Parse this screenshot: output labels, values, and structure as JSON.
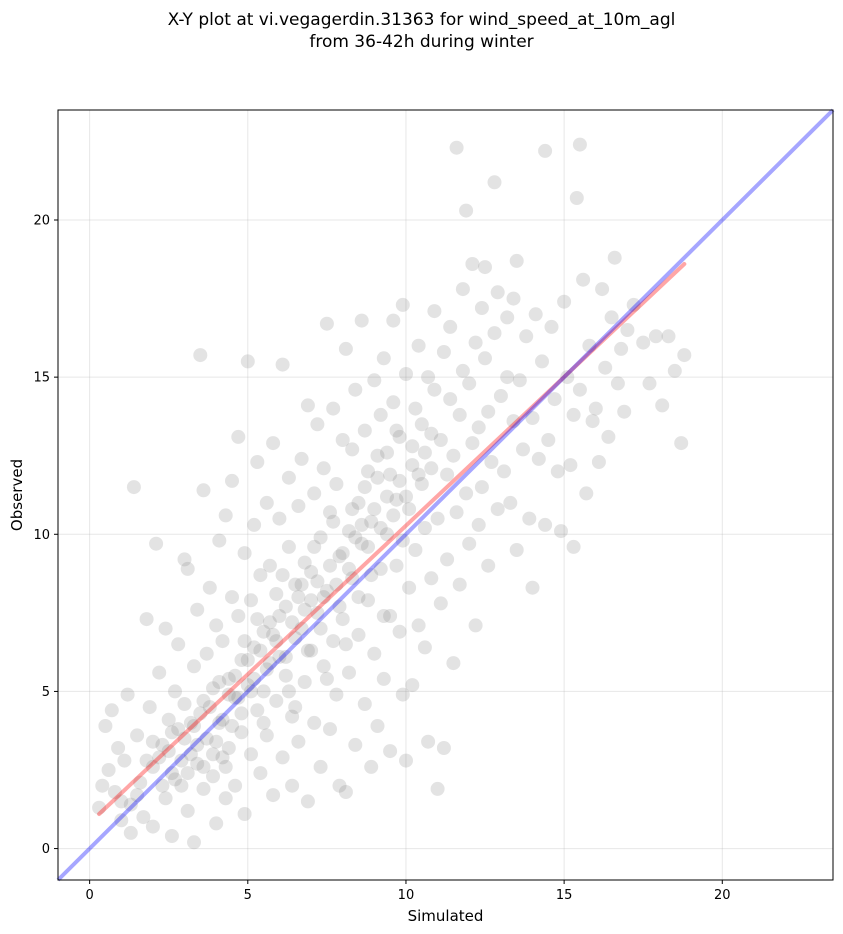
{
  "chart_data": {
    "type": "scatter",
    "title_lines": [
      "X-Y plot at vi.vegagerdin.31363 for wind_speed_at_10m_agl",
      "from 36-42h during winter"
    ],
    "xlabel": "Simulated",
    "ylabel": "Observed",
    "xlim": [
      -1.0,
      23.5
    ],
    "ylim": [
      -1.0,
      23.5
    ],
    "xticks": [
      0,
      5,
      10,
      15,
      20
    ],
    "yticks": [
      0,
      5,
      10,
      15,
      20
    ],
    "grid": true,
    "point_color": "#808080",
    "identity_line": {
      "color": "#0000ff",
      "from": [
        -1.0,
        -1.0
      ],
      "to": [
        23.5,
        23.5
      ]
    },
    "fit_line": {
      "color": "#ff0000",
      "from": [
        0.3,
        1.1
      ],
      "to": [
        18.8,
        18.6
      ]
    },
    "points": [
      [
        0.3,
        1.3
      ],
      [
        0.4,
        2.0
      ],
      [
        0.5,
        3.9
      ],
      [
        0.6,
        2.5
      ],
      [
        0.7,
        4.4
      ],
      [
        0.8,
        1.8
      ],
      [
        0.9,
        3.2
      ],
      [
        1.0,
        1.5
      ],
      [
        1.1,
        2.8
      ],
      [
        1.2,
        4.9
      ],
      [
        1.3,
        1.4
      ],
      [
        1.3,
        0.5
      ],
      [
        1.4,
        11.5
      ],
      [
        1.5,
        3.6
      ],
      [
        1.6,
        2.1
      ],
      [
        1.7,
        1.0
      ],
      [
        1.8,
        7.3
      ],
      [
        1.9,
        4.5
      ],
      [
        2.0,
        2.6
      ],
      [
        2.0,
        0.7
      ],
      [
        2.1,
        9.7
      ],
      [
        2.2,
        5.6
      ],
      [
        2.3,
        3.3
      ],
      [
        2.4,
        1.6
      ],
      [
        2.4,
        7.0
      ],
      [
        2.5,
        4.1
      ],
      [
        2.6,
        2.4
      ],
      [
        2.6,
        0.4
      ],
      [
        2.7,
        5.0
      ],
      [
        2.8,
        3.8
      ],
      [
        2.8,
        6.5
      ],
      [
        2.9,
        2.0
      ],
      [
        3.0,
        9.2
      ],
      [
        3.0,
        4.6
      ],
      [
        3.1,
        1.2
      ],
      [
        3.1,
        8.9
      ],
      [
        3.2,
        3.0
      ],
      [
        3.3,
        5.8
      ],
      [
        3.3,
        0.2
      ],
      [
        3.4,
        2.7
      ],
      [
        3.4,
        7.6
      ],
      [
        3.5,
        4.3
      ],
      [
        3.5,
        15.7
      ],
      [
        3.6,
        11.4
      ],
      [
        3.6,
        1.9
      ],
      [
        3.7,
        6.2
      ],
      [
        3.7,
        3.5
      ],
      [
        3.8,
        8.3
      ],
      [
        3.9,
        2.3
      ],
      [
        3.9,
        5.1
      ],
      [
        4.0,
        0.8
      ],
      [
        4.0,
        7.1
      ],
      [
        4.1,
        4.0
      ],
      [
        4.1,
        9.8
      ],
      [
        4.2,
        2.9
      ],
      [
        4.2,
        6.6
      ],
      [
        4.3,
        1.6
      ],
      [
        4.3,
        10.6
      ],
      [
        4.4,
        5.4
      ],
      [
        4.4,
        3.2
      ],
      [
        4.5,
        8.0
      ],
      [
        4.5,
        11.7
      ],
      [
        4.6,
        4.8
      ],
      [
        4.6,
        2.0
      ],
      [
        4.7,
        7.4
      ],
      [
        4.7,
        13.1
      ],
      [
        4.8,
        6.0
      ],
      [
        4.8,
        3.7
      ],
      [
        4.9,
        9.4
      ],
      [
        4.9,
        1.1
      ],
      [
        5.0,
        5.2
      ],
      [
        5.0,
        15.5
      ],
      [
        5.1,
        7.9
      ],
      [
        5.1,
        3.0
      ],
      [
        5.2,
        10.3
      ],
      [
        5.2,
        6.4
      ],
      [
        5.3,
        4.4
      ],
      [
        5.3,
        12.3
      ],
      [
        5.4,
        2.4
      ],
      [
        5.4,
        8.7
      ],
      [
        5.5,
        6.9
      ],
      [
        5.5,
        5.0
      ],
      [
        5.6,
        11.0
      ],
      [
        5.6,
        3.6
      ],
      [
        5.7,
        9.0
      ],
      [
        5.7,
        7.2
      ],
      [
        5.8,
        1.7
      ],
      [
        5.8,
        12.9
      ],
      [
        5.9,
        4.7
      ],
      [
        5.9,
        8.1
      ],
      [
        6.0,
        6.1
      ],
      [
        6.0,
        10.5
      ],
      [
        6.1,
        2.9
      ],
      [
        6.1,
        15.4
      ],
      [
        6.2,
        7.7
      ],
      [
        6.2,
        5.5
      ],
      [
        6.3,
        9.6
      ],
      [
        6.3,
        11.8
      ],
      [
        6.4,
        4.2
      ],
      [
        6.4,
        2.0
      ],
      [
        6.5,
        8.4
      ],
      [
        6.5,
        6.7
      ],
      [
        6.6,
        10.9
      ],
      [
        6.6,
        3.4
      ],
      [
        6.7,
        12.4
      ],
      [
        6.7,
        7.0
      ],
      [
        6.8,
        5.3
      ],
      [
        6.8,
        9.1
      ],
      [
        6.9,
        1.5
      ],
      [
        6.9,
        14.1
      ],
      [
        7.0,
        6.3
      ],
      [
        7.0,
        8.8
      ],
      [
        7.1,
        4.0
      ],
      [
        7.1,
        11.3
      ],
      [
        7.2,
        13.5
      ],
      [
        7.2,
        7.5
      ],
      [
        7.3,
        2.6
      ],
      [
        7.3,
        9.9
      ],
      [
        7.4,
        5.8
      ],
      [
        7.4,
        12.1
      ],
      [
        7.5,
        16.7
      ],
      [
        7.5,
        8.2
      ],
      [
        7.6,
        3.8
      ],
      [
        7.6,
        10.7
      ],
      [
        7.7,
        6.6
      ],
      [
        7.7,
        14.0
      ],
      [
        7.8,
        4.9
      ],
      [
        7.8,
        11.6
      ],
      [
        7.9,
        2.0
      ],
      [
        7.9,
        9.3
      ],
      [
        8.0,
        13.0
      ],
      [
        8.0,
        7.3
      ],
      [
        8.1,
        1.8
      ],
      [
        8.1,
        15.9
      ],
      [
        8.2,
        10.1
      ],
      [
        8.2,
        5.6
      ],
      [
        8.3,
        12.7
      ],
      [
        8.3,
        8.6
      ],
      [
        8.4,
        3.3
      ],
      [
        8.4,
        14.6
      ],
      [
        8.5,
        6.8
      ],
      [
        8.5,
        11.0
      ],
      [
        8.6,
        9.7
      ],
      [
        8.6,
        16.8
      ],
      [
        8.7,
        4.6
      ],
      [
        8.7,
        13.3
      ],
      [
        8.8,
        7.9
      ],
      [
        8.8,
        12.0
      ],
      [
        8.9,
        2.6
      ],
      [
        8.9,
        10.4
      ],
      [
        9.0,
        14.9
      ],
      [
        9.0,
        6.2
      ],
      [
        9.1,
        3.9
      ],
      [
        9.1,
        11.8
      ],
      [
        9.2,
        8.9
      ],
      [
        9.2,
        13.8
      ],
      [
        9.3,
        15.6
      ],
      [
        9.3,
        5.4
      ],
      [
        9.4,
        10.0
      ],
      [
        9.4,
        12.6
      ],
      [
        9.5,
        7.4
      ],
      [
        9.5,
        3.1
      ],
      [
        9.6,
        16.8
      ],
      [
        9.6,
        14.2
      ],
      [
        9.7,
        9.0
      ],
      [
        9.7,
        11.1
      ],
      [
        9.8,
        6.9
      ],
      [
        9.8,
        13.1
      ],
      [
        9.9,
        17.3
      ],
      [
        9.9,
        4.9
      ],
      [
        10.0,
        2.8
      ],
      [
        10.0,
        15.1
      ],
      [
        10.1,
        10.8
      ],
      [
        10.1,
        8.3
      ],
      [
        10.2,
        12.8
      ],
      [
        10.2,
        5.2
      ],
      [
        10.3,
        14.0
      ],
      [
        10.3,
        9.5
      ],
      [
        10.4,
        16.0
      ],
      [
        10.4,
        7.1
      ],
      [
        10.5,
        11.6
      ],
      [
        10.5,
        13.5
      ],
      [
        10.6,
        6.4
      ],
      [
        10.6,
        10.2
      ],
      [
        10.7,
        15.0
      ],
      [
        10.7,
        3.4
      ],
      [
        10.8,
        12.1
      ],
      [
        10.8,
        8.6
      ],
      [
        10.9,
        14.6
      ],
      [
        10.9,
        17.1
      ],
      [
        11.0,
        1.9
      ],
      [
        11.0,
        10.5
      ],
      [
        11.1,
        13.0
      ],
      [
        11.1,
        7.8
      ],
      [
        11.2,
        15.8
      ],
      [
        11.2,
        3.2
      ],
      [
        11.3,
        11.9
      ],
      [
        11.3,
        9.2
      ],
      [
        11.4,
        14.3
      ],
      [
        11.4,
        16.6
      ],
      [
        11.5,
        12.5
      ],
      [
        11.5,
        5.9
      ],
      [
        11.6,
        10.7
      ],
      [
        11.6,
        22.3
      ],
      [
        11.7,
        13.8
      ],
      [
        11.7,
        8.4
      ],
      [
        11.8,
        15.2
      ],
      [
        11.8,
        17.8
      ],
      [
        11.9,
        11.3
      ],
      [
        11.9,
        20.3
      ],
      [
        12.0,
        9.7
      ],
      [
        12.0,
        14.8
      ],
      [
        12.1,
        12.9
      ],
      [
        12.1,
        18.6
      ],
      [
        12.2,
        7.1
      ],
      [
        12.2,
        16.1
      ],
      [
        12.3,
        10.3
      ],
      [
        12.3,
        13.4
      ],
      [
        12.4,
        17.2
      ],
      [
        12.4,
        11.5
      ],
      [
        12.5,
        15.6
      ],
      [
        12.5,
        18.5
      ],
      [
        12.6,
        9.0
      ],
      [
        12.6,
        13.9
      ],
      [
        12.7,
        12.3
      ],
      [
        12.8,
        16.4
      ],
      [
        12.8,
        21.2
      ],
      [
        12.9,
        10.8
      ],
      [
        12.9,
        17.7
      ],
      [
        13.0,
        14.4
      ],
      [
        13.1,
        12.0
      ],
      [
        13.2,
        15.0
      ],
      [
        13.2,
        16.9
      ],
      [
        13.3,
        11.0
      ],
      [
        13.4,
        13.6
      ],
      [
        13.4,
        17.5
      ],
      [
        13.5,
        9.5
      ],
      [
        13.5,
        18.7
      ],
      [
        13.6,
        14.9
      ],
      [
        13.7,
        12.7
      ],
      [
        13.8,
        16.3
      ],
      [
        13.9,
        10.5
      ],
      [
        14.0,
        8.3
      ],
      [
        14.0,
        13.7
      ],
      [
        14.1,
        17.0
      ],
      [
        14.2,
        12.4
      ],
      [
        14.3,
        15.5
      ],
      [
        14.4,
        22.2
      ],
      [
        14.4,
        10.3
      ],
      [
        14.5,
        13.0
      ],
      [
        14.6,
        16.6
      ],
      [
        14.7,
        14.3
      ],
      [
        14.8,
        12.0
      ],
      [
        14.9,
        10.1
      ],
      [
        15.0,
        17.4
      ],
      [
        15.1,
        15.0
      ],
      [
        15.2,
        12.2
      ],
      [
        15.3,
        13.8
      ],
      [
        15.3,
        9.6
      ],
      [
        15.4,
        20.7
      ],
      [
        15.5,
        14.6
      ],
      [
        15.5,
        22.4
      ],
      [
        15.6,
        18.1
      ],
      [
        15.7,
        11.3
      ],
      [
        15.8,
        16.0
      ],
      [
        15.9,
        13.6
      ],
      [
        16.0,
        14.0
      ],
      [
        16.1,
        12.3
      ],
      [
        16.2,
        17.8
      ],
      [
        16.3,
        15.3
      ],
      [
        16.4,
        13.1
      ],
      [
        16.5,
        16.9
      ],
      [
        16.6,
        18.8
      ],
      [
        16.7,
        14.8
      ],
      [
        16.8,
        15.9
      ],
      [
        16.9,
        13.9
      ],
      [
        17.0,
        16.5
      ],
      [
        17.2,
        17.3
      ],
      [
        17.5,
        16.1
      ],
      [
        17.7,
        14.8
      ],
      [
        17.9,
        16.3
      ],
      [
        18.1,
        14.1
      ],
      [
        18.3,
        16.3
      ],
      [
        18.5,
        15.2
      ],
      [
        18.7,
        12.9
      ],
      [
        18.8,
        15.7
      ],
      [
        2.0,
        3.4
      ],
      [
        2.2,
        2.9
      ],
      [
        2.5,
        3.1
      ],
      [
        2.7,
        2.2
      ],
      [
        3.0,
        3.5
      ],
      [
        3.2,
        4.0
      ],
      [
        3.4,
        3.3
      ],
      [
        3.6,
        2.6
      ],
      [
        3.8,
        4.5
      ],
      [
        4.0,
        3.4
      ],
      [
        4.2,
        4.1
      ],
      [
        4.4,
        4.9
      ],
      [
        4.6,
        5.5
      ],
      [
        4.8,
        4.3
      ],
      [
        5.0,
        6.0
      ],
      [
        5.2,
        5.4
      ],
      [
        5.4,
        6.3
      ],
      [
        5.6,
        5.7
      ],
      [
        5.8,
        6.8
      ],
      [
        6.0,
        7.4
      ],
      [
        6.2,
        6.1
      ],
      [
        6.4,
        7.2
      ],
      [
        6.6,
        8.0
      ],
      [
        6.8,
        7.6
      ],
      [
        7.0,
        7.9
      ],
      [
        7.2,
        8.5
      ],
      [
        7.4,
        8.0
      ],
      [
        7.6,
        9.0
      ],
      [
        7.8,
        8.4
      ],
      [
        8.0,
        9.4
      ],
      [
        8.2,
        8.9
      ],
      [
        8.4,
        9.9
      ],
      [
        8.6,
        10.3
      ],
      [
        8.8,
        9.6
      ],
      [
        9.0,
        10.8
      ],
      [
        9.2,
        10.2
      ],
      [
        9.4,
        11.2
      ],
      [
        9.6,
        10.6
      ],
      [
        9.8,
        11.7
      ],
      [
        10.0,
        11.2
      ],
      [
        10.2,
        12.2
      ],
      [
        10.4,
        11.9
      ],
      [
        10.6,
        12.6
      ],
      [
        10.8,
        13.2
      ],
      [
        1.0,
        0.9
      ],
      [
        1.5,
        1.7
      ],
      [
        1.8,
        2.8
      ],
      [
        2.3,
        2.0
      ],
      [
        2.6,
        3.7
      ],
      [
        2.9,
        2.8
      ],
      [
        3.1,
        2.4
      ],
      [
        3.3,
        3.9
      ],
      [
        3.6,
        4.7
      ],
      [
        3.9,
        3.0
      ],
      [
        4.1,
        5.3
      ],
      [
        4.3,
        2.6
      ],
      [
        4.5,
        3.9
      ],
      [
        4.7,
        4.8
      ],
      [
        4.9,
        6.6
      ],
      [
        5.1,
        5.0
      ],
      [
        5.3,
        7.3
      ],
      [
        5.5,
        4.0
      ],
      [
        5.7,
        5.9
      ],
      [
        5.9,
        6.6
      ],
      [
        6.1,
        8.7
      ],
      [
        6.3,
        5.0
      ],
      [
        6.5,
        4.5
      ],
      [
        6.7,
        8.4
      ],
      [
        6.9,
        6.3
      ],
      [
        7.1,
        9.6
      ],
      [
        7.3,
        7.0
      ],
      [
        7.5,
        5.4
      ],
      [
        7.7,
        10.4
      ],
      [
        7.9,
        7.7
      ],
      [
        8.1,
        6.5
      ],
      [
        8.3,
        10.8
      ],
      [
        8.5,
        8.0
      ],
      [
        8.7,
        11.5
      ],
      [
        8.9,
        8.7
      ],
      [
        9.1,
        12.5
      ],
      [
        9.3,
        7.4
      ],
      [
        9.5,
        11.9
      ],
      [
        9.7,
        13.3
      ],
      [
        9.9,
        9.8
      ]
    ]
  }
}
